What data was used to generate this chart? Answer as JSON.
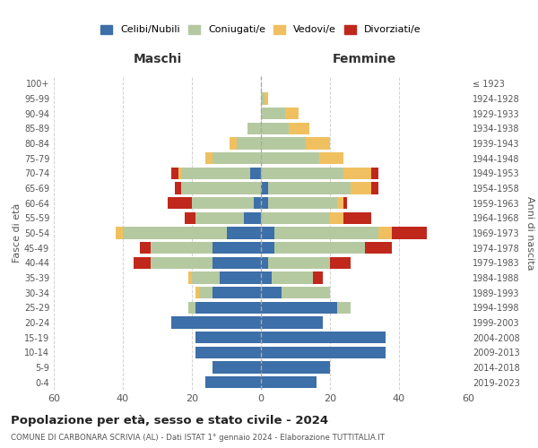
{
  "age_groups": [
    "0-4",
    "5-9",
    "10-14",
    "15-19",
    "20-24",
    "25-29",
    "30-34",
    "35-39",
    "40-44",
    "45-49",
    "50-54",
    "55-59",
    "60-64",
    "65-69",
    "70-74",
    "75-79",
    "80-84",
    "85-89",
    "90-94",
    "95-99",
    "100+"
  ],
  "birth_years": [
    "2019-2023",
    "2014-2018",
    "2009-2013",
    "2004-2008",
    "1999-2003",
    "1994-1998",
    "1989-1993",
    "1984-1988",
    "1979-1983",
    "1974-1978",
    "1969-1973",
    "1964-1968",
    "1959-1963",
    "1954-1958",
    "1949-1953",
    "1944-1948",
    "1939-1943",
    "1934-1938",
    "1929-1933",
    "1924-1928",
    "≤ 1923"
  ],
  "male": {
    "celibi": [
      16,
      14,
      19,
      19,
      26,
      19,
      14,
      12,
      14,
      14,
      10,
      5,
      2,
      0,
      3,
      0,
      0,
      0,
      0,
      0,
      0
    ],
    "coniugati": [
      0,
      0,
      0,
      0,
      0,
      2,
      4,
      8,
      18,
      18,
      30,
      14,
      18,
      23,
      20,
      14,
      7,
      4,
      0,
      0,
      0
    ],
    "vedovi": [
      0,
      0,
      0,
      0,
      0,
      0,
      1,
      1,
      0,
      0,
      2,
      0,
      0,
      0,
      1,
      2,
      2,
      0,
      0,
      0,
      0
    ],
    "divorziati": [
      0,
      0,
      0,
      0,
      0,
      0,
      0,
      0,
      5,
      3,
      0,
      3,
      7,
      2,
      2,
      0,
      0,
      0,
      0,
      0,
      0
    ]
  },
  "female": {
    "nubili": [
      16,
      20,
      36,
      36,
      18,
      22,
      6,
      3,
      2,
      4,
      4,
      0,
      2,
      2,
      0,
      0,
      0,
      0,
      0,
      0,
      0
    ],
    "coniugate": [
      0,
      0,
      0,
      0,
      0,
      4,
      14,
      12,
      18,
      26,
      30,
      20,
      20,
      24,
      24,
      17,
      13,
      8,
      7,
      1,
      0
    ],
    "vedove": [
      0,
      0,
      0,
      0,
      0,
      0,
      0,
      0,
      0,
      0,
      4,
      4,
      2,
      6,
      8,
      7,
      7,
      6,
      4,
      1,
      0
    ],
    "divorziate": [
      0,
      0,
      0,
      0,
      0,
      0,
      0,
      3,
      6,
      8,
      10,
      8,
      1,
      2,
      2,
      0,
      0,
      0,
      0,
      0,
      0
    ]
  },
  "colors": {
    "celibi": "#3D6FA8",
    "coniugati": "#B5C9A0",
    "vedovi": "#F0C060",
    "divorziati": "#C0281C"
  },
  "xlim": 60,
  "title": "Popolazione per età, sesso e stato civile - 2024",
  "subtitle": "COMUNE DI CARBONARA SCRIVIA (AL) - Dati ISTAT 1° gennaio 2024 - Elaborazione TUTTITALIA.IT",
  "ylabel_left": "Fasce di età",
  "ylabel_right": "Anni di nascita",
  "xlabel_left": "Maschi",
  "xlabel_right": "Femmine",
  "legend_labels": [
    "Celibi/Nubili",
    "Coniugati/e",
    "Vedovi/e",
    "Divorziati/e"
  ],
  "bg_color": "#FFFFFF",
  "grid_color": "#CCCCCC"
}
